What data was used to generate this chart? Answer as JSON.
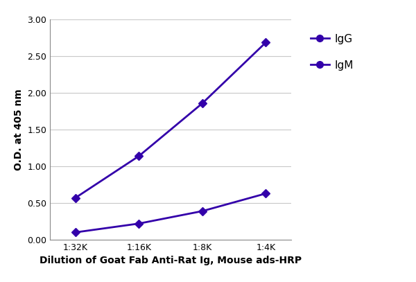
{
  "x_labels": [
    "1:32K",
    "1:16K",
    "1:8K",
    "1:4K"
  ],
  "x_values": [
    1,
    2,
    3,
    4
  ],
  "IgG_values": [
    0.57,
    1.14,
    1.86,
    2.69
  ],
  "IgM_values": [
    0.1,
    0.22,
    0.39,
    0.63
  ],
  "line_color": "#3300aa",
  "marker_line": "D",
  "marker_legend": "o",
  "marker_size": 6,
  "legend_marker_size": 7,
  "xlabel": "Dilution of Goat Fab Anti-Rat Ig, Mouse ads-HRP",
  "ylabel": "O.D. at 405 nm",
  "ylim": [
    0.0,
    3.0
  ],
  "yticks": [
    0.0,
    0.5,
    1.0,
    1.5,
    2.0,
    2.5,
    3.0
  ],
  "legend_labels": [
    "IgG",
    "IgM"
  ],
  "xlabel_fontsize": 10,
  "ylabel_fontsize": 10,
  "tick_fontsize": 9,
  "legend_fontsize": 11,
  "linewidth": 2.0,
  "background_color": "#ffffff",
  "grid_color": "#c8c8c8",
  "spine_color": "#888888"
}
